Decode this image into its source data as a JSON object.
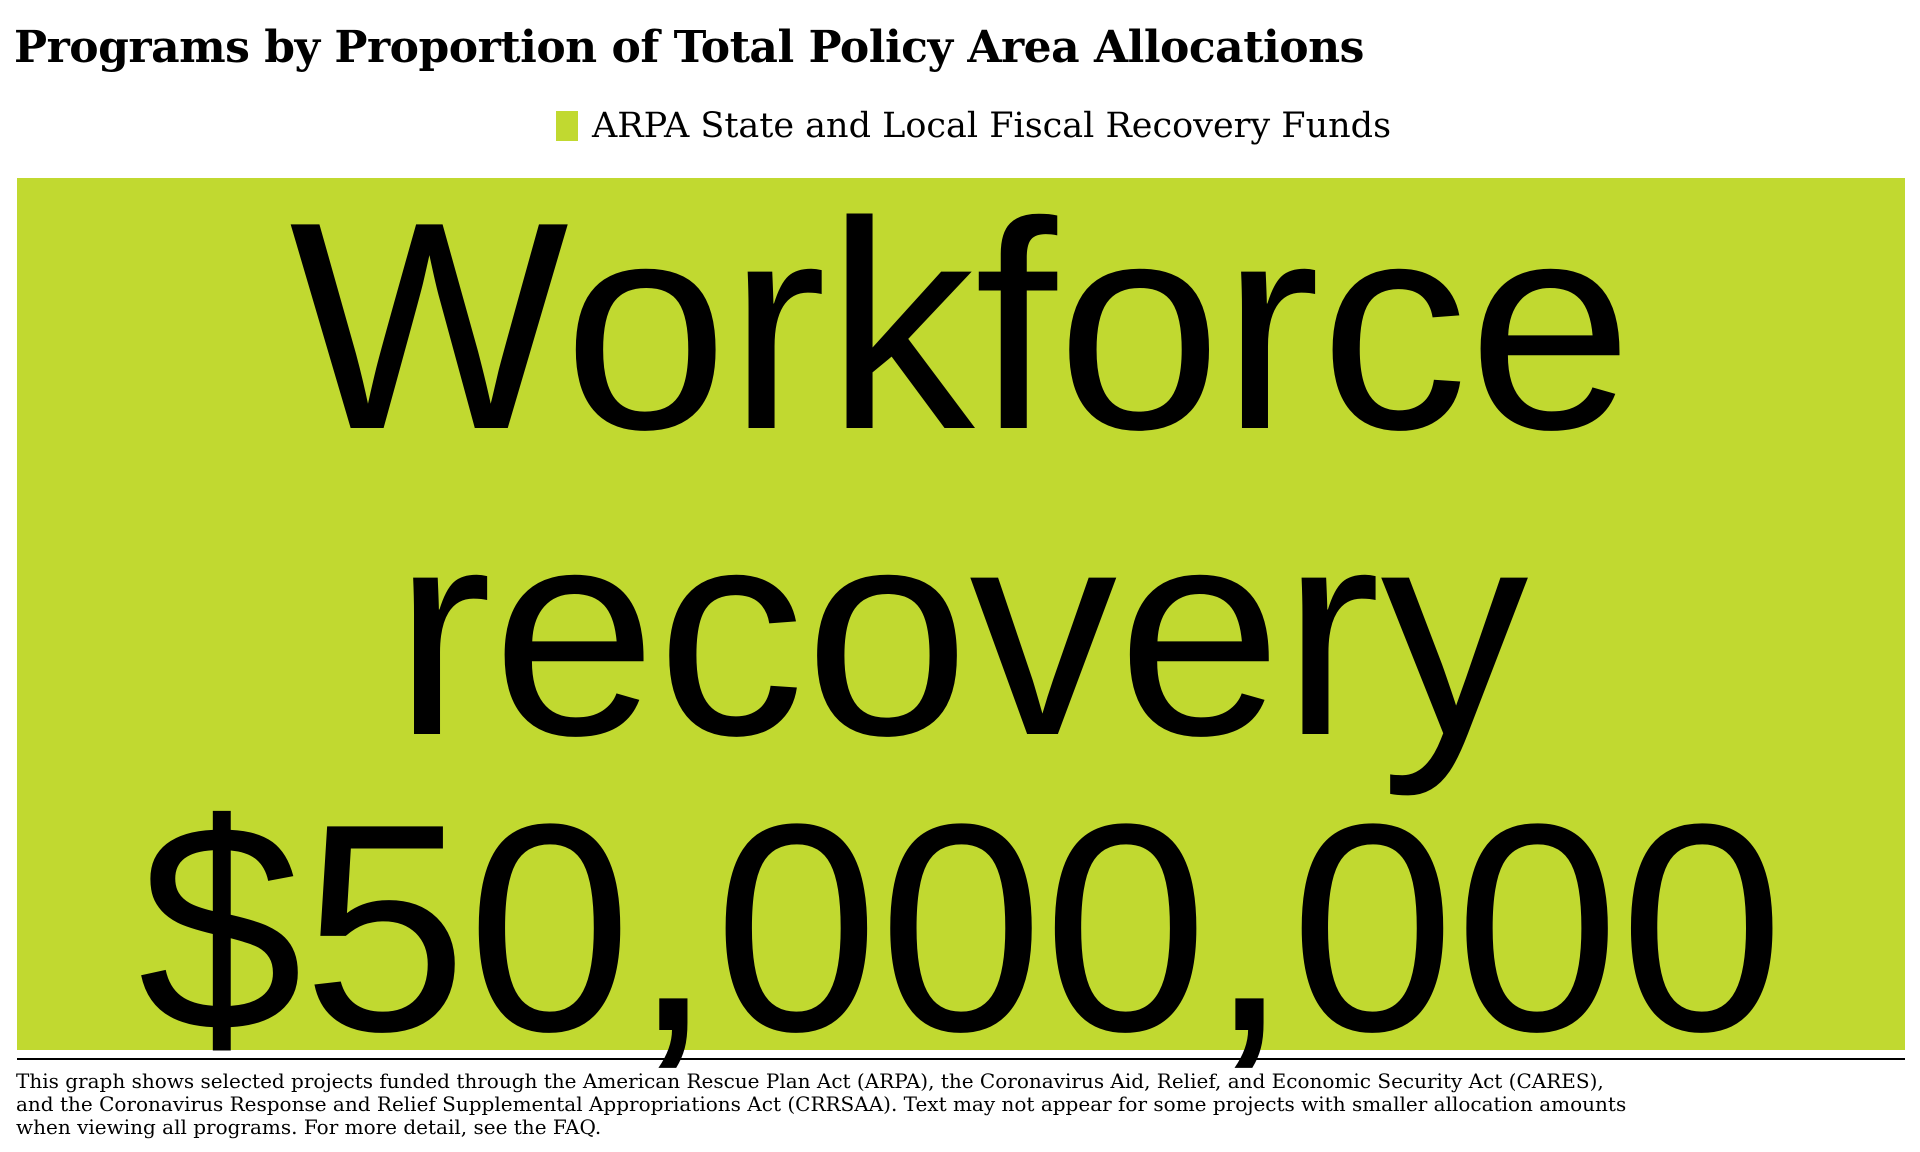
{
  "chart_data": {
    "type": "treemap",
    "title": "Programs by Proportion of Total Policy Area Allocations",
    "legend": {
      "placement": "top-center",
      "entries": [
        {
          "label": "ARPA State and Local Fiscal Recovery Funds",
          "color": "#c1d930"
        }
      ]
    },
    "tiles": [
      {
        "name_line1": "Workforce",
        "name_line2": "recovery",
        "value_label": "$50,000,000",
        "value": 50000000,
        "series": "ARPA State and Local Fiscal Recovery Funds",
        "color": "#c1d930"
      }
    ]
  },
  "footnote": {
    "line1": "This graph shows selected projects funded through the American Rescue Plan Act (ARPA), the Coronavirus Aid, Relief, and Economic Security Act (CARES),",
    "line2": "and the Coronavirus Response and Relief Supplemental Appropriations Act (CRRSAA). Text may not appear for some projects with smaller allocation amounts",
    "line3": " when viewing all programs. For more detail, see the FAQ."
  }
}
